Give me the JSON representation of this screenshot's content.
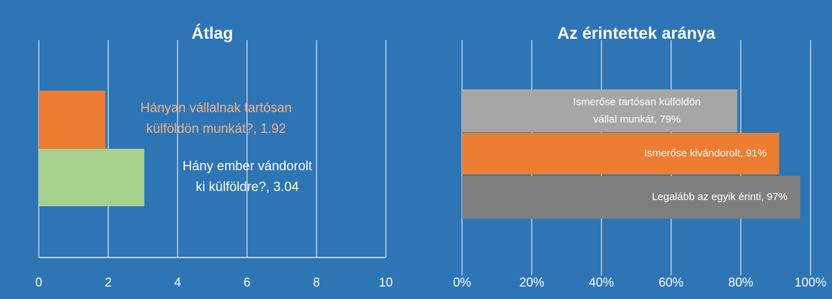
{
  "colors": {
    "background": "#2e75b6",
    "gridline": "#e8eef6",
    "axis_text": "#ffffff"
  },
  "chart_data": [
    {
      "type": "bar",
      "orientation": "horizontal",
      "title": "Átlag",
      "xlim": [
        0,
        10
      ],
      "x_ticks": [
        "0",
        "2",
        "4",
        "6",
        "8",
        "10"
      ],
      "grid": true,
      "legend": "none",
      "categories": [
        "Hányan vállalnak tartósan külföldön munkát?",
        "Hány ember vándorolt ki külföldre?"
      ],
      "values": [
        1.92,
        3.04
      ],
      "colors": [
        "#ed7d31",
        "#a9d18e"
      ],
      "label_colors": [
        "#f4b183",
        "#ffffff"
      ],
      "data_labels": [
        [
          "Hányan vállalnak tartósan",
          "külföldön munkát?, 1.92"
        ],
        [
          "Hány ember vándorolt",
          "ki külföldre?, 3.04"
        ]
      ]
    },
    {
      "type": "bar",
      "orientation": "horizontal",
      "title": "Az érintettek aránya",
      "xlim": [
        0,
        100
      ],
      "x_ticks": [
        "0%",
        "20%",
        "40%",
        "60%",
        "80%",
        "100%"
      ],
      "grid": true,
      "legend": "none",
      "categories": [
        "Ismerőse tartósan külföldön vállal munkát",
        "Ismerőse kivándorolt",
        "Legalább az egyik érinti"
      ],
      "values": [
        79,
        91,
        97
      ],
      "colors": [
        "#a6a6a6",
        "#ed7d31",
        "#7f7f7f"
      ],
      "label_colors": [
        "#ffffff",
        "#ffffff",
        "#ffffff"
      ],
      "data_labels": [
        [
          "Ismerőse tartósan külföldön",
          "vállal munkát, 79%"
        ],
        [
          "Ismerőse kivándorolt, 91%"
        ],
        [
          "Legalább az egyik érinti, 97%"
        ]
      ]
    }
  ]
}
